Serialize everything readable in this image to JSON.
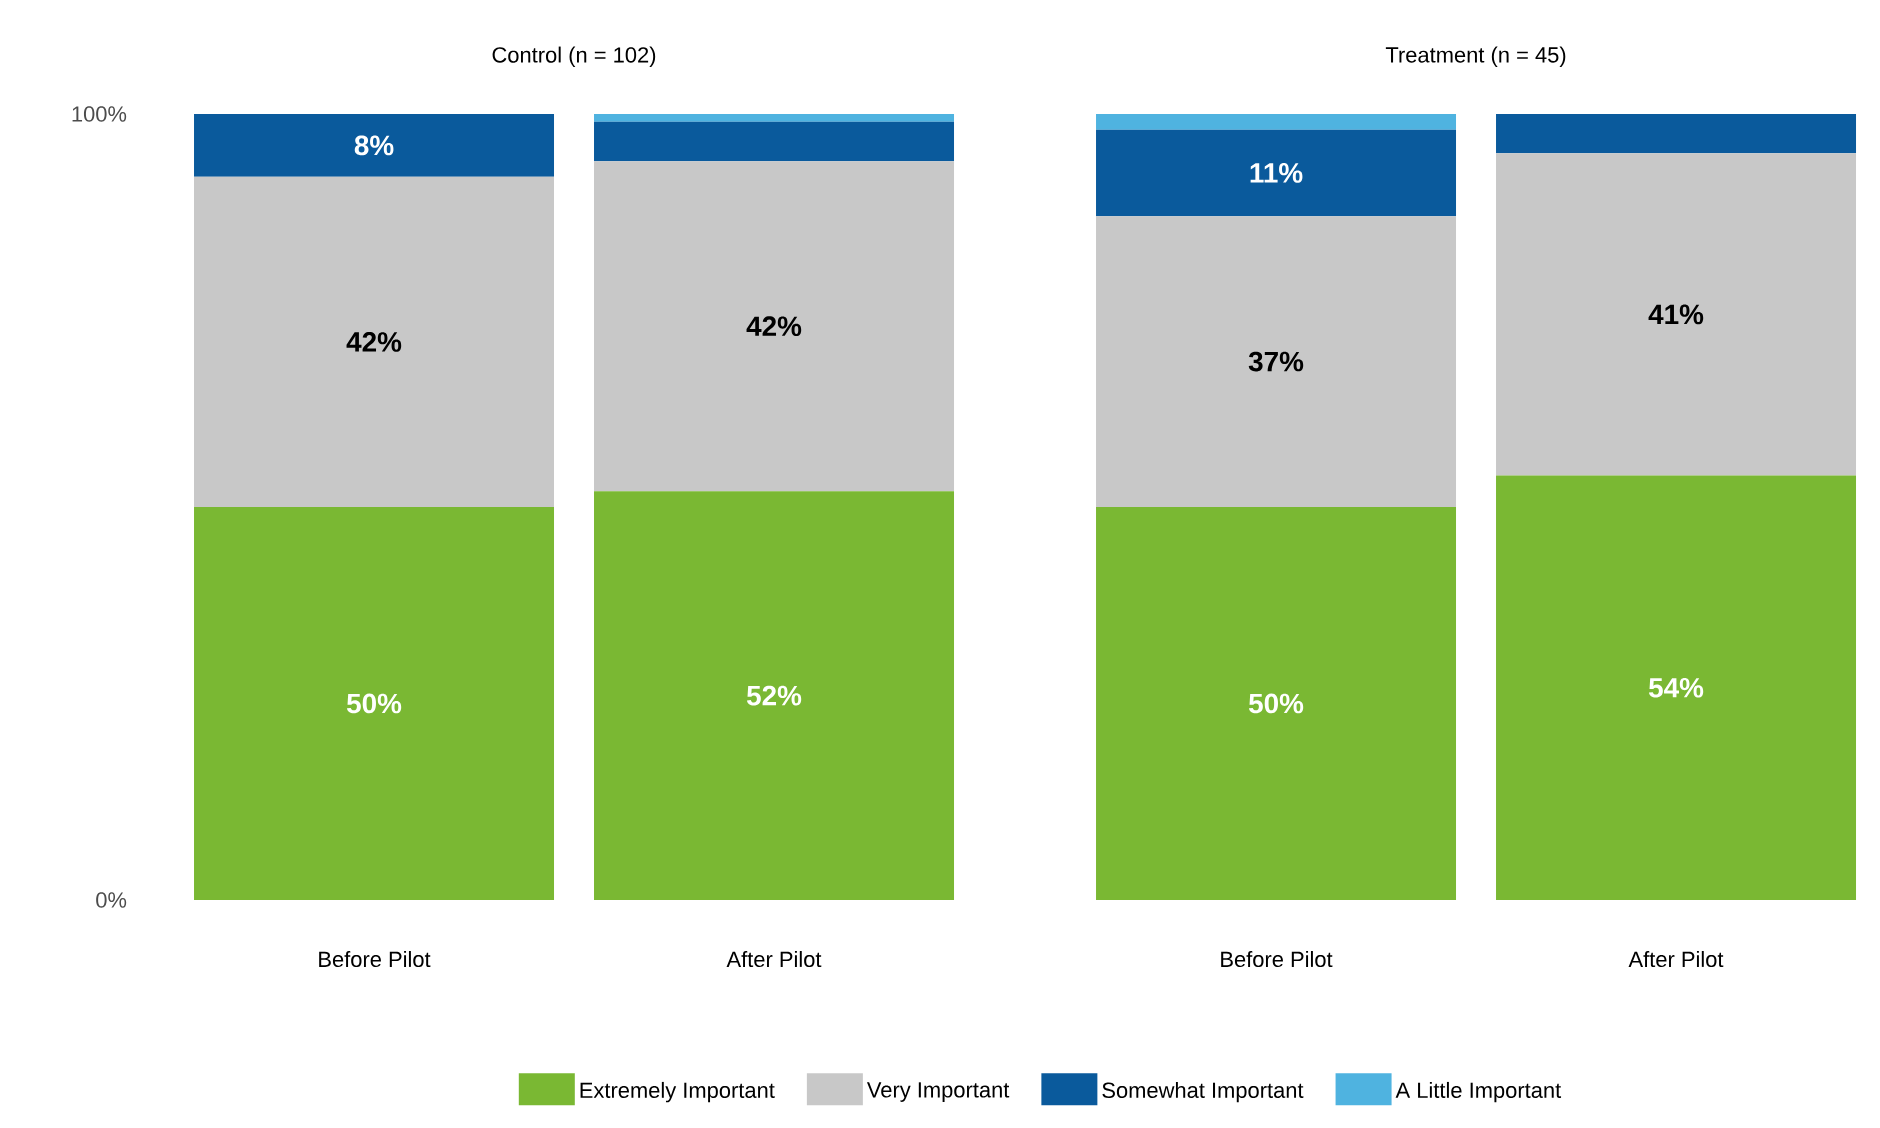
{
  "chart_data": [
    {
      "type": "bar",
      "stacked": true,
      "title": "Control (n = 102)",
      "categories": [
        "Before Pilot",
        "After Pilot"
      ],
      "ylim": [
        0,
        100
      ],
      "yticks": [
        {
          "value": 0,
          "label": "0%"
        },
        {
          "value": 100,
          "label": "100%"
        }
      ],
      "legend": "bottom",
      "series": [
        {
          "name": "Extremely Important",
          "color": "#7ab833",
          "values": [
            50,
            52
          ],
          "value_labels": [
            "50%",
            "52%"
          ]
        },
        {
          "name": "Very Important",
          "color": "#c8c8c8",
          "values": [
            42,
            42
          ],
          "value_labels": [
            "42%",
            "42%"
          ]
        },
        {
          "name": "Somewhat Important",
          "color": "#0a5a9c",
          "values": [
            8,
            5
          ],
          "value_labels": [
            "8%",
            null
          ]
        },
        {
          "name": "A Little Important",
          "color": "#4fb3e0",
          "values": [
            0,
            1
          ],
          "value_labels": [
            null,
            null
          ]
        }
      ]
    },
    {
      "type": "bar",
      "stacked": true,
      "title": "Treatment (n = 45)",
      "categories": [
        "Before Pilot",
        "After Pilot"
      ],
      "ylim": [
        0,
        100
      ],
      "tick_labels": "x",
      "series": [
        {
          "color": "#7ab833",
          "values": [
            50,
            54
          ],
          "value_labels": [
            "50%",
            "54%"
          ]
        },
        {
          "color": "#c8c8c8",
          "values": [
            37,
            41
          ],
          "value_labels": [
            "37%",
            "41%"
          ]
        },
        {
          "color": "#0a5a9c",
          "values": [
            11,
            5
          ],
          "value_labels": [
            "11%",
            null
          ]
        },
        {
          "color": "#4fb3e0",
          "values": [
            2,
            0
          ],
          "value_labels": [
            null,
            null
          ]
        }
      ]
    }
  ]
}
